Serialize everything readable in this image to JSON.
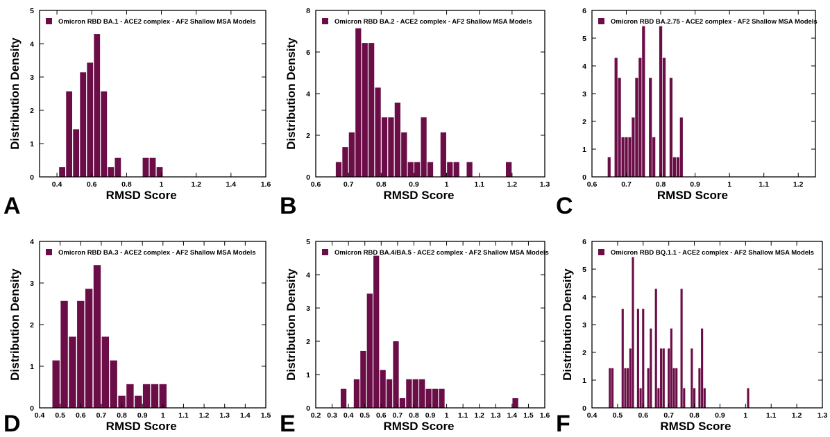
{
  "colors": {
    "bar": "#6b0d47",
    "axis": "#000000",
    "background": "#ffffff"
  },
  "chart_data": [
    {
      "type": "bar",
      "panel_label": "A",
      "legend": "Omicron RBD BA.1 - ACE2 complex - AF2 Shallow MSA Models",
      "xlabel": "RMSD Score",
      "ylabel": "Distribution Density",
      "xlim": [
        0.3,
        1.6
      ],
      "ylim": [
        0,
        5
      ],
      "xticks": [
        "0.4",
        "0.6",
        "0.8",
        "1",
        "1.2",
        "1.4",
        "1.6"
      ],
      "yticks": [
        "0",
        "1",
        "2",
        "3",
        "4",
        "5"
      ],
      "bar_width": 0.035,
      "x": [
        0.43,
        0.47,
        0.51,
        0.55,
        0.59,
        0.63,
        0.67,
        0.71,
        0.75,
        0.79,
        0.91,
        0.95,
        0.99
      ],
      "values": [
        0.29,
        2.57,
        1.43,
        3.14,
        3.43,
        4.29,
        2.57,
        0.29,
        0.57,
        0,
        0.57,
        0.57,
        0.29
      ],
      "grid": false,
      "legend_position": "top-left"
    },
    {
      "type": "bar",
      "panel_label": "B",
      "legend": "Omicron RBD BA.2 - ACE2 complex - AF2 Shallow MSA Models",
      "xlabel": "RMSD Score",
      "ylabel": "Distribution Density",
      "xlim": [
        0.6,
        1.3
      ],
      "ylim": [
        0,
        8
      ],
      "xticks": [
        "0.6",
        "0.7",
        "0.8",
        "0.9",
        "1",
        "1.1",
        "1.2",
        "1.3"
      ],
      "yticks": [
        "0",
        "2",
        "4",
        "6",
        "8"
      ],
      "bar_width": 0.0175,
      "x": [
        0.67,
        0.69,
        0.71,
        0.73,
        0.75,
        0.77,
        0.79,
        0.81,
        0.83,
        0.85,
        0.87,
        0.89,
        0.91,
        0.93,
        0.95,
        0.99,
        1.01,
        1.03,
        1.07,
        1.19
      ],
      "values": [
        0.71,
        1.43,
        2.14,
        7.14,
        6.43,
        6.43,
        4.29,
        2.86,
        2.86,
        3.57,
        2.14,
        0.71,
        0.71,
        2.86,
        0.71,
        2.14,
        0.71,
        0.71,
        0.71,
        0.71
      ],
      "grid": false,
      "legend_position": "top-left"
    },
    {
      "type": "bar",
      "panel_label": "C",
      "legend": "Omicron RBD BA.2.75 - ACE2 complex - AF2 Shallow MSA Models",
      "xlabel": "RMSD Score",
      "ylabel": "",
      "xlim": [
        0.6,
        1.25
      ],
      "ylim": [
        0,
        6
      ],
      "xticks": [
        "0.6",
        "0.7",
        "0.8",
        "0.9",
        "1",
        "1.1",
        "1.2"
      ],
      "yticks": [
        "0",
        "1",
        "2",
        "3",
        "4",
        "5",
        "6"
      ],
      "bar_width": 0.0085,
      "x": [
        0.65,
        0.67,
        0.68,
        0.69,
        0.7,
        0.71,
        0.72,
        0.73,
        0.74,
        0.75,
        0.77,
        0.78,
        0.8,
        0.81,
        0.83,
        0.84,
        0.85,
        0.86,
        0.87,
        0.89,
        0.9,
        0.91,
        0.92,
        0.93,
        1.0,
        1.01
      ],
      "values": [
        0.71,
        4.29,
        3.57,
        1.43,
        1.43,
        1.43,
        2.14,
        3.57,
        4.29,
        5.43,
        3.57,
        1.43,
        5.43,
        4.29,
        3.57,
        0.71,
        0.71,
        2.14,
        0,
        0,
        0,
        0,
        0,
        0,
        0,
        0
      ],
      "grid": false,
      "legend_position": "top-left"
    },
    {
      "type": "bar",
      "panel_label": "D",
      "legend": "Omicron RBD BA.3 - ACE2 complex - AF2 Shallow MSA Models",
      "xlabel": "RMSD Score",
      "ylabel": "Distribution Density",
      "xlim": [
        0.4,
        1.5
      ],
      "ylim": [
        0,
        4
      ],
      "xticks": [
        "0.4",
        "0.5",
        "0.6",
        "0.7",
        "0.8",
        "0.9",
        "1",
        "1.1",
        "1.2",
        "1.3",
        "1.4",
        "1.5"
      ],
      "yticks": [
        "0",
        "1",
        "2",
        "3",
        "4"
      ],
      "bar_width": 0.035,
      "x": [
        0.48,
        0.52,
        0.56,
        0.6,
        0.64,
        0.68,
        0.72,
        0.76,
        0.8,
        0.84,
        0.88,
        0.92,
        0.96,
        1.0,
        1.04
      ],
      "values": [
        1.14,
        2.57,
        1.71,
        2.57,
        2.86,
        3.43,
        1.71,
        1.14,
        0.29,
        0.57,
        0.29,
        0.57,
        0.57,
        0.57,
        0
      ],
      "grid": false,
      "legend_position": "top-left"
    },
    {
      "type": "bar",
      "panel_label": "E",
      "legend": "Omicron RBD BA.4/BA.5 - ACE2 complex - AF2 Shallow MSA Models",
      "xlabel": "RMSD Score",
      "ylabel": "Distribution Density",
      "xlim": [
        0.2,
        1.6
      ],
      "ylim": [
        0,
        5
      ],
      "xticks": [
        "0.2",
        "0.3",
        "0.4",
        "0.5",
        "0.6",
        "0.7",
        "0.8",
        "0.9",
        "1",
        "1.1",
        "1.2",
        "1.3",
        "1.4",
        "1.5",
        "1.6"
      ],
      "yticks": [
        "0",
        "1",
        "2",
        "3",
        "4",
        "5"
      ],
      "bar_width": 0.035,
      "x": [
        0.37,
        0.45,
        0.49,
        0.53,
        0.57,
        0.61,
        0.65,
        0.69,
        0.73,
        0.77,
        0.81,
        0.85,
        0.89,
        0.93,
        0.97,
        1.01,
        1.05,
        1.09,
        1.42
      ],
      "values": [
        0.57,
        0.86,
        1.71,
        3.43,
        4.57,
        1.14,
        0.86,
        2.0,
        0.29,
        0.86,
        0.86,
        0.86,
        0.57,
        0.57,
        0.57,
        0,
        0,
        0,
        0.29
      ],
      "grid": false,
      "legend_position": "top-left"
    },
    {
      "type": "bar",
      "panel_label": "F",
      "legend": "Omicron RBD BQ.1.1 - ACE2 complex - AF2 Shallow MSA Models",
      "xlabel": "RMSD Score",
      "ylabel": "Distribution Density",
      "xlim": [
        0.4,
        1.3
      ],
      "ylim": [
        0,
        6
      ],
      "xticks": [
        "0.4",
        "0.5",
        "0.6",
        "0.7",
        "0.8",
        "0.9",
        "1",
        "1.1",
        "1.2",
        "1.3"
      ],
      "yticks": [
        "0",
        "1",
        "2",
        "3",
        "4",
        "5",
        "6"
      ],
      "bar_width": 0.0085,
      "x": [
        0.47,
        0.48,
        0.52,
        0.53,
        0.54,
        0.55,
        0.56,
        0.58,
        0.59,
        0.6,
        0.62,
        0.63,
        0.65,
        0.66,
        0.67,
        0.68,
        0.7,
        0.71,
        0.72,
        0.73,
        0.75,
        0.76,
        0.79,
        0.8,
        0.82,
        0.83,
        0.84,
        0.85,
        0.86,
        0.88,
        0.89,
        0.9,
        1.01
      ],
      "values": [
        1.43,
        1.43,
        3.57,
        1.43,
        1.43,
        2.14,
        5.43,
        3.57,
        0.71,
        3.57,
        1.43,
        2.86,
        4.29,
        0.71,
        2.14,
        2.14,
        2.14,
        2.86,
        1.43,
        1.43,
        4.29,
        0.71,
        2.14,
        0.71,
        1.43,
        2.86,
        0.71,
        0,
        0,
        0,
        0,
        0,
        0.71
      ],
      "grid": false,
      "legend_position": "top-left"
    }
  ]
}
